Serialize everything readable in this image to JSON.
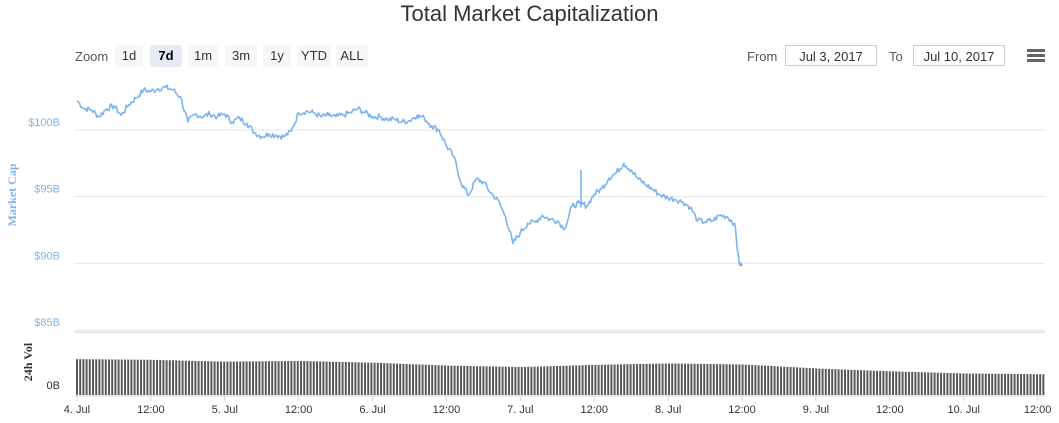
{
  "title": "Total Market Capitalization",
  "controls": {
    "zoom_label": "Zoom",
    "zoom_buttons": [
      "1d",
      "7d",
      "1m",
      "3m",
      "1y",
      "YTD",
      "ALL"
    ],
    "zoom_selected": "7d",
    "from_label": "From",
    "from_value": "Jul 3, 2017",
    "to_label": "To",
    "to_value": "Jul 10, 2017",
    "menu_icon": "hamburger-menu-icon"
  },
  "colors": {
    "line": "#7cb5ec",
    "volume": "#595959",
    "axis_text": "#7cb5ec",
    "grid": "#e6e6e6"
  },
  "chart_data": {
    "type": "line",
    "title": "Total Market Capitalization",
    "ylabel": "Market Cap",
    "ylabel2": "24h Vol",
    "y_ticks": [
      "$85B",
      "$90B",
      "$95B",
      "$100B"
    ],
    "y_tick_values": [
      85,
      90,
      95,
      100
    ],
    "ylim": [
      85,
      103
    ],
    "vol_ticks": [
      "0B"
    ],
    "x_ticks": [
      "4. Jul",
      "12:00",
      "5. Jul",
      "12:00",
      "6. Jul",
      "12:00",
      "7. Jul",
      "12:00",
      "8. Jul",
      "12:00",
      "9. Jul",
      "12:00",
      "10. Jul",
      "12:00"
    ],
    "x_tick_days": [
      1,
      1.5,
      2,
      2.5,
      3,
      3.5,
      4,
      4.5,
      5,
      5.5,
      6,
      6.5,
      7,
      7.5
    ],
    "xlim": [
      0.98,
      7.55
    ],
    "x_unit": "days from Jul 3, 2017 00:00",
    "series": [
      {
        "name": "Market Cap",
        "unit": "$B",
        "points": [
          [
            1.0,
            102.2
          ],
          [
            1.05,
            101.6
          ],
          [
            1.1,
            101.5
          ],
          [
            1.15,
            101.0
          ],
          [
            1.2,
            101.6
          ],
          [
            1.25,
            101.8
          ],
          [
            1.3,
            101.1
          ],
          [
            1.35,
            101.9
          ],
          [
            1.4,
            102.4
          ],
          [
            1.45,
            103.0
          ],
          [
            1.5,
            102.9
          ],
          [
            1.55,
            103.1
          ],
          [
            1.6,
            103.2
          ],
          [
            1.65,
            103.0
          ],
          [
            1.7,
            102.5
          ],
          [
            1.75,
            100.6
          ],
          [
            1.8,
            101.2
          ],
          [
            1.85,
            101.0
          ],
          [
            1.9,
            101.2
          ],
          [
            1.95,
            101.0
          ],
          [
            2.0,
            101.2
          ],
          [
            2.05,
            100.6
          ],
          [
            2.1,
            100.9
          ],
          [
            2.15,
            100.5
          ],
          [
            2.2,
            99.8
          ],
          [
            2.25,
            99.5
          ],
          [
            2.3,
            99.7
          ],
          [
            2.35,
            99.6
          ],
          [
            2.4,
            99.5
          ],
          [
            2.45,
            99.9
          ],
          [
            2.5,
            101.3
          ],
          [
            2.55,
            101.4
          ],
          [
            2.6,
            101.3
          ],
          [
            2.65,
            101.0
          ],
          [
            2.7,
            101.1
          ],
          [
            2.75,
            101.0
          ],
          [
            2.8,
            101.1
          ],
          [
            2.85,
            101.3
          ],
          [
            2.9,
            101.6
          ],
          [
            2.95,
            101.3
          ],
          [
            3.0,
            101.0
          ],
          [
            3.05,
            101.0
          ],
          [
            3.1,
            100.8
          ],
          [
            3.15,
            100.8
          ],
          [
            3.2,
            100.6
          ],
          [
            3.25,
            100.7
          ],
          [
            3.3,
            101.1
          ],
          [
            3.35,
            100.9
          ],
          [
            3.4,
            100.3
          ],
          [
            3.45,
            100.0
          ],
          [
            3.5,
            98.8
          ],
          [
            3.55,
            98.0
          ],
          [
            3.6,
            96.0
          ],
          [
            3.65,
            95.1
          ],
          [
            3.7,
            96.3
          ],
          [
            3.75,
            96.1
          ],
          [
            3.8,
            95.3
          ],
          [
            3.85,
            94.7
          ],
          [
            3.9,
            93.5
          ],
          [
            3.95,
            91.5
          ],
          [
            4.0,
            92.3
          ],
          [
            4.05,
            93.0
          ],
          [
            4.1,
            93.1
          ],
          [
            4.15,
            93.6
          ],
          [
            4.2,
            93.3
          ],
          [
            4.25,
            93.2
          ],
          [
            4.3,
            92.6
          ],
          [
            4.35,
            94.3
          ],
          [
            4.4,
            94.5
          ],
          [
            4.45,
            94.3
          ],
          [
            4.5,
            95.2
          ],
          [
            4.55,
            95.6
          ],
          [
            4.6,
            96.4
          ],
          [
            4.65,
            96.8
          ],
          [
            4.7,
            97.5
          ],
          [
            4.75,
            97.0
          ],
          [
            4.8,
            96.3
          ],
          [
            4.85,
            95.9
          ],
          [
            4.9,
            95.5
          ],
          [
            4.95,
            95.1
          ],
          [
            5.0,
            94.9
          ],
          [
            5.05,
            94.8
          ],
          [
            5.1,
            94.6
          ],
          [
            5.15,
            94.2
          ],
          [
            5.2,
            93.2
          ],
          [
            5.25,
            93.1
          ],
          [
            5.3,
            93.2
          ],
          [
            5.35,
            93.6
          ],
          [
            5.4,
            93.5
          ],
          [
            5.45,
            93.0
          ],
          [
            5.48,
            90.0
          ],
          [
            5.5,
            89.8
          ]
        ]
      },
      {
        "name": "24h Vol",
        "unit": "$B",
        "points": [
          [
            1.0,
            1.0
          ],
          [
            1.5,
            0.98
          ],
          [
            2.0,
            0.93
          ],
          [
            2.5,
            0.95
          ],
          [
            3.0,
            0.9
          ],
          [
            3.5,
            0.82
          ],
          [
            4.0,
            0.78
          ],
          [
            4.5,
            0.84
          ],
          [
            5.0,
            0.88
          ],
          [
            5.5,
            0.85
          ],
          [
            6.0,
            0.74
          ],
          [
            6.5,
            0.66
          ],
          [
            7.0,
            0.6
          ],
          [
            7.5,
            0.58
          ]
        ]
      }
    ]
  }
}
